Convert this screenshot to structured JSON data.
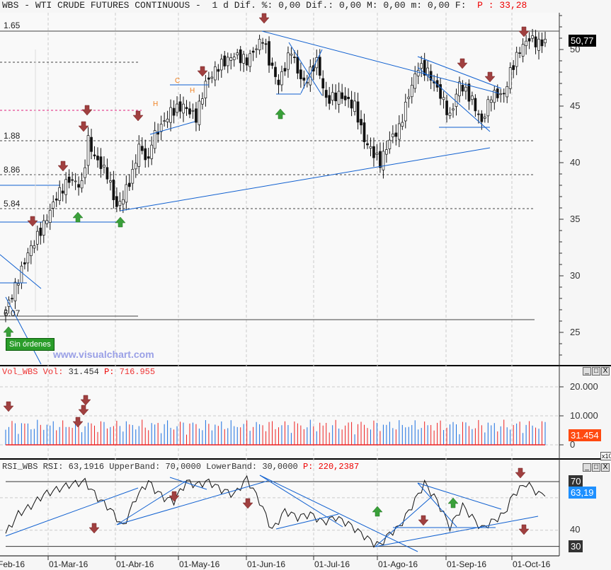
{
  "header": {
    "symbol": "WBS",
    "name": "WTI CRUDE FUTURES CONTINUOUS",
    "period": "1 d",
    "dif_pct_label": "Dif. %:",
    "dif_pct": "0,00",
    "dif_label": "Dif.:",
    "dif": "0,00",
    "M_label": "M:",
    "M": "0,00",
    "m_label": "m:",
    "m": "0,00",
    "F_label": "F:",
    "P_label": "P :",
    "P": "33,28"
  },
  "main": {
    "last_price": "50,77",
    "level_labels": [
      "1.65",
      "1.88",
      "8.86",
      "5.84",
      "6.07"
    ],
    "sin_ordenes": "Sin órdenes",
    "watermark": "www.visualchart.com",
    "pattern_labels": [
      "H",
      "C",
      "H"
    ]
  },
  "volume": {
    "title": "Vol_WBS",
    "vol_label": "Vol:",
    "vol": "31.454",
    "P_label": "P:",
    "P": "716.955",
    "last_tag": "31.454",
    "multiplier": "x10"
  },
  "rsi": {
    "title": "RSI_WBS",
    "rsi_label": "RSI:",
    "rsi": "63,1916",
    "upper_label": "UpperBand:",
    "upper": "70,0000",
    "lower_label": "LowerBand:",
    "lower": "30,0000",
    "P_label": "P:",
    "P": "220,2387",
    "last_tag": "63,19"
  },
  "window_buttons": {
    "min": "_",
    "max": "□",
    "close": "X"
  },
  "chart_data": [
    {
      "type": "candlestick",
      "title": "WBS - WTI CRUDE FUTURES CONTINUOUS",
      "y_ticks": [
        "50",
        "45",
        "40",
        "35",
        "30",
        "25"
      ],
      "ylim": [
        22,
        53
      ],
      "x_ticks": [
        "Feb-16",
        "01-Mar-16",
        "01-Abr-16",
        "01-May-16",
        "01-Jun-16",
        "01-Jul-16",
        "01-Ago-16",
        "01-Sep-16",
        "01-Oct-16"
      ],
      "price_path_day_close": [
        [
          0,
          27
        ],
        [
          3,
          29
        ],
        [
          7,
          32
        ],
        [
          12,
          34.5
        ],
        [
          16,
          37
        ],
        [
          20,
          38.5
        ],
        [
          24,
          38
        ],
        [
          26,
          42
        ],
        [
          28,
          40.5
        ],
        [
          32,
          39
        ],
        [
          35,
          36
        ],
        [
          37,
          37
        ],
        [
          40,
          39
        ],
        [
          42,
          41.5
        ],
        [
          45,
          40
        ],
        [
          46,
          42
        ],
        [
          52,
          44.5
        ],
        [
          56,
          45
        ],
        [
          60,
          44
        ],
        [
          63,
          47
        ],
        [
          67,
          48.5
        ],
        [
          72,
          49.5
        ],
        [
          76,
          49
        ],
        [
          81,
          51
        ],
        [
          83,
          49
        ],
        [
          86,
          47
        ],
        [
          90,
          50
        ],
        [
          92,
          48
        ],
        [
          94,
          47
        ],
        [
          98,
          49
        ],
        [
          101,
          45.5
        ],
        [
          105,
          46
        ],
        [
          110,
          45
        ],
        [
          113,
          42
        ],
        [
          118,
          40
        ],
        [
          121,
          42
        ],
        [
          124,
          43
        ],
        [
          127,
          46
        ],
        [
          130,
          48.5
        ],
        [
          133,
          48
        ],
        [
          137,
          46
        ],
        [
          140,
          44
        ],
        [
          143,
          47
        ],
        [
          147,
          45.5
        ],
        [
          150,
          43.5
        ],
        [
          153,
          46
        ],
        [
          157,
          46
        ],
        [
          159,
          48
        ],
        [
          162,
          50
        ],
        [
          165,
          51
        ],
        [
          168,
          50.5
        ],
        [
          170,
          50.77
        ]
      ]
    },
    {
      "type": "bar",
      "title": "Vol_WBS",
      "y_ticks": [
        "20.000",
        "10.000",
        "0"
      ],
      "ylim": [
        0,
        24000
      ]
    },
    {
      "type": "line",
      "title": "RSI_WBS",
      "y_ticks": [
        "70",
        "40",
        "30"
      ],
      "ylim": [
        25,
        77
      ],
      "bands": [
        70,
        30
      ],
      "rsi_path_day_value": [
        [
          0,
          38
        ],
        [
          4,
          50
        ],
        [
          8,
          55
        ],
        [
          12,
          62
        ],
        [
          16,
          65
        ],
        [
          20,
          68
        ],
        [
          25,
          70
        ],
        [
          29,
          60
        ],
        [
          33,
          53
        ],
        [
          37,
          42
        ],
        [
          41,
          60
        ],
        [
          45,
          70
        ],
        [
          47,
          65
        ],
        [
          50,
          60
        ],
        [
          53,
          58
        ],
        [
          57,
          70
        ],
        [
          60,
          68
        ],
        [
          64,
          70
        ],
        [
          68,
          65
        ],
        [
          72,
          62
        ],
        [
          76,
          72
        ],
        [
          80,
          58
        ],
        [
          84,
          40
        ],
        [
          88,
          52
        ],
        [
          92,
          48
        ],
        [
          96,
          50
        ],
        [
          100,
          45
        ],
        [
          104,
          48
        ],
        [
          108,
          44
        ],
        [
          112,
          38
        ],
        [
          116,
          32
        ],
        [
          118,
          31
        ],
        [
          121,
          38
        ],
        [
          124,
          42
        ],
        [
          128,
          55
        ],
        [
          132,
          69
        ],
        [
          136,
          58
        ],
        [
          140,
          42
        ],
        [
          144,
          55
        ],
        [
          147,
          48
        ],
        [
          150,
          41
        ],
        [
          153,
          45
        ],
        [
          157,
          50
        ],
        [
          160,
          62
        ],
        [
          164,
          69
        ],
        [
          166,
          66
        ],
        [
          168,
          62
        ],
        [
          170,
          63.19
        ]
      ]
    }
  ]
}
